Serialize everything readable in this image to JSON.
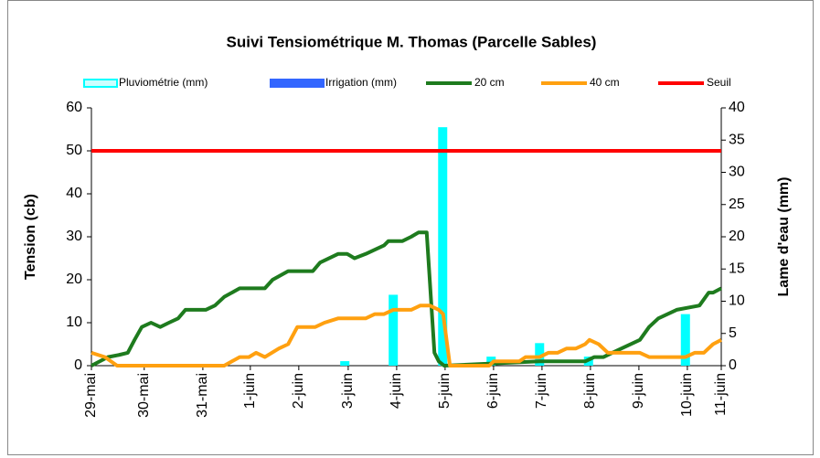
{
  "chart_data": {
    "type": "line",
    "title": "Suivi Tensiométrique M. Thomas (Parcelle Sables)",
    "y_label": "Tension (cb)",
    "y2_label": "Lame d'eau (mm)",
    "xlim": [
      0,
      13
    ],
    "ylim": [
      0,
      60
    ],
    "y2lim": [
      0,
      40
    ],
    "yticks": [
      0,
      10,
      20,
      30,
      40,
      50,
      60
    ],
    "y2ticks": [
      0,
      5,
      10,
      15,
      20,
      25,
      30,
      35,
      40
    ],
    "xticks": [
      {
        "value": 0,
        "label": "29-mai"
      },
      {
        "value": 1.09,
        "label": "30-mai"
      },
      {
        "value": 2.3,
        "label": "31-mai"
      },
      {
        "value": 3.28,
        "label": "1-juin"
      },
      {
        "value": 4.28,
        "label": "2-juin"
      },
      {
        "value": 5.3,
        "label": "3-juin"
      },
      {
        "value": 6.3,
        "label": "4-juin"
      },
      {
        "value": 7.3,
        "label": "5-juin"
      },
      {
        "value": 8.3,
        "label": "6-juin"
      },
      {
        "value": 9.3,
        "label": "7-juin"
      },
      {
        "value": 10.3,
        "label": "8-juin"
      },
      {
        "value": 11.3,
        "label": "9-juin"
      },
      {
        "value": 12.3,
        "label": "10-juin"
      },
      {
        "value": 13,
        "label": "11-juin"
      }
    ],
    "series": [
      {
        "name": "Pluviométrie (mm)",
        "type": "bar",
        "axis": "y2",
        "color": "#00ffff",
        "x": [
          5.23,
          6.23,
          7.25,
          8.25,
          9.25,
          10.26,
          12.26
        ],
        "values": [
          0.7,
          11,
          37,
          1.4,
          3.5,
          1.4,
          8
        ]
      },
      {
        "name": "Irrigation (mm)",
        "type": "bar",
        "axis": "y2",
        "color": "#3366ff",
        "x": [],
        "values": []
      },
      {
        "name": "20 cm",
        "type": "line",
        "color": "#1e7b1e",
        "x": [
          0,
          0.34,
          0.57,
          0.75,
          0.89,
          1.04,
          1.23,
          1.42,
          1.6,
          1.79,
          1.94,
          2.36,
          2.55,
          2.74,
          3.06,
          3.58,
          3.74,
          4.06,
          4.57,
          4.72,
          5.09,
          5.28,
          5.43,
          5.66,
          6.04,
          6.13,
          6.42,
          6.6,
          6.75,
          6.92,
          7.08,
          7.17,
          7.28,
          9.25,
          10.19,
          10.38,
          10.57,
          10.75,
          10.94,
          11.32,
          11.51,
          11.7,
          12.08,
          12.55,
          12.74,
          12.83,
          13
        ],
        "values": [
          0,
          2,
          2.5,
          3,
          6,
          9,
          10,
          9,
          10,
          11,
          13,
          13,
          14,
          16,
          18,
          18,
          20,
          22,
          22,
          24,
          26,
          26,
          25,
          26,
          28,
          29,
          29,
          30,
          31,
          31,
          3,
          1,
          0,
          1,
          1,
          2,
          2,
          3,
          4,
          6,
          9,
          11,
          13,
          14,
          17,
          17,
          18
        ]
      },
      {
        "name": "40 cm",
        "type": "line",
        "color": "#ffa010",
        "x": [
          0,
          0.28,
          0.53,
          2.74,
          3.06,
          3.25,
          3.4,
          3.58,
          3.87,
          4.06,
          4.25,
          4.62,
          4.81,
          5.09,
          5.66,
          5.85,
          6.04,
          6.23,
          6.6,
          6.79,
          6.98,
          7.17,
          7.26,
          7.4,
          8.21,
          8.3,
          8.83,
          8.96,
          9.25,
          9.43,
          9.62,
          9.81,
          10,
          10.19,
          10.28,
          10.47,
          10.66,
          10.94,
          11.32,
          11.51,
          12.08,
          12.26,
          12.45,
          12.64,
          12.83,
          13
        ],
        "values": [
          3,
          2,
          0,
          0,
          2,
          2,
          3,
          2,
          4,
          5,
          9,
          9,
          10,
          11,
          11,
          12,
          12,
          13,
          13,
          14,
          14,
          13,
          12,
          0,
          0,
          1,
          1,
          2,
          2,
          3,
          3,
          4,
          4,
          5,
          6,
          5,
          3,
          3,
          3,
          2,
          2,
          2,
          3,
          3,
          5,
          6
        ]
      },
      {
        "name": "Seuil",
        "type": "line",
        "color": "#ff0000",
        "x": [
          0,
          13
        ],
        "values": [
          50,
          50
        ]
      }
    ]
  }
}
